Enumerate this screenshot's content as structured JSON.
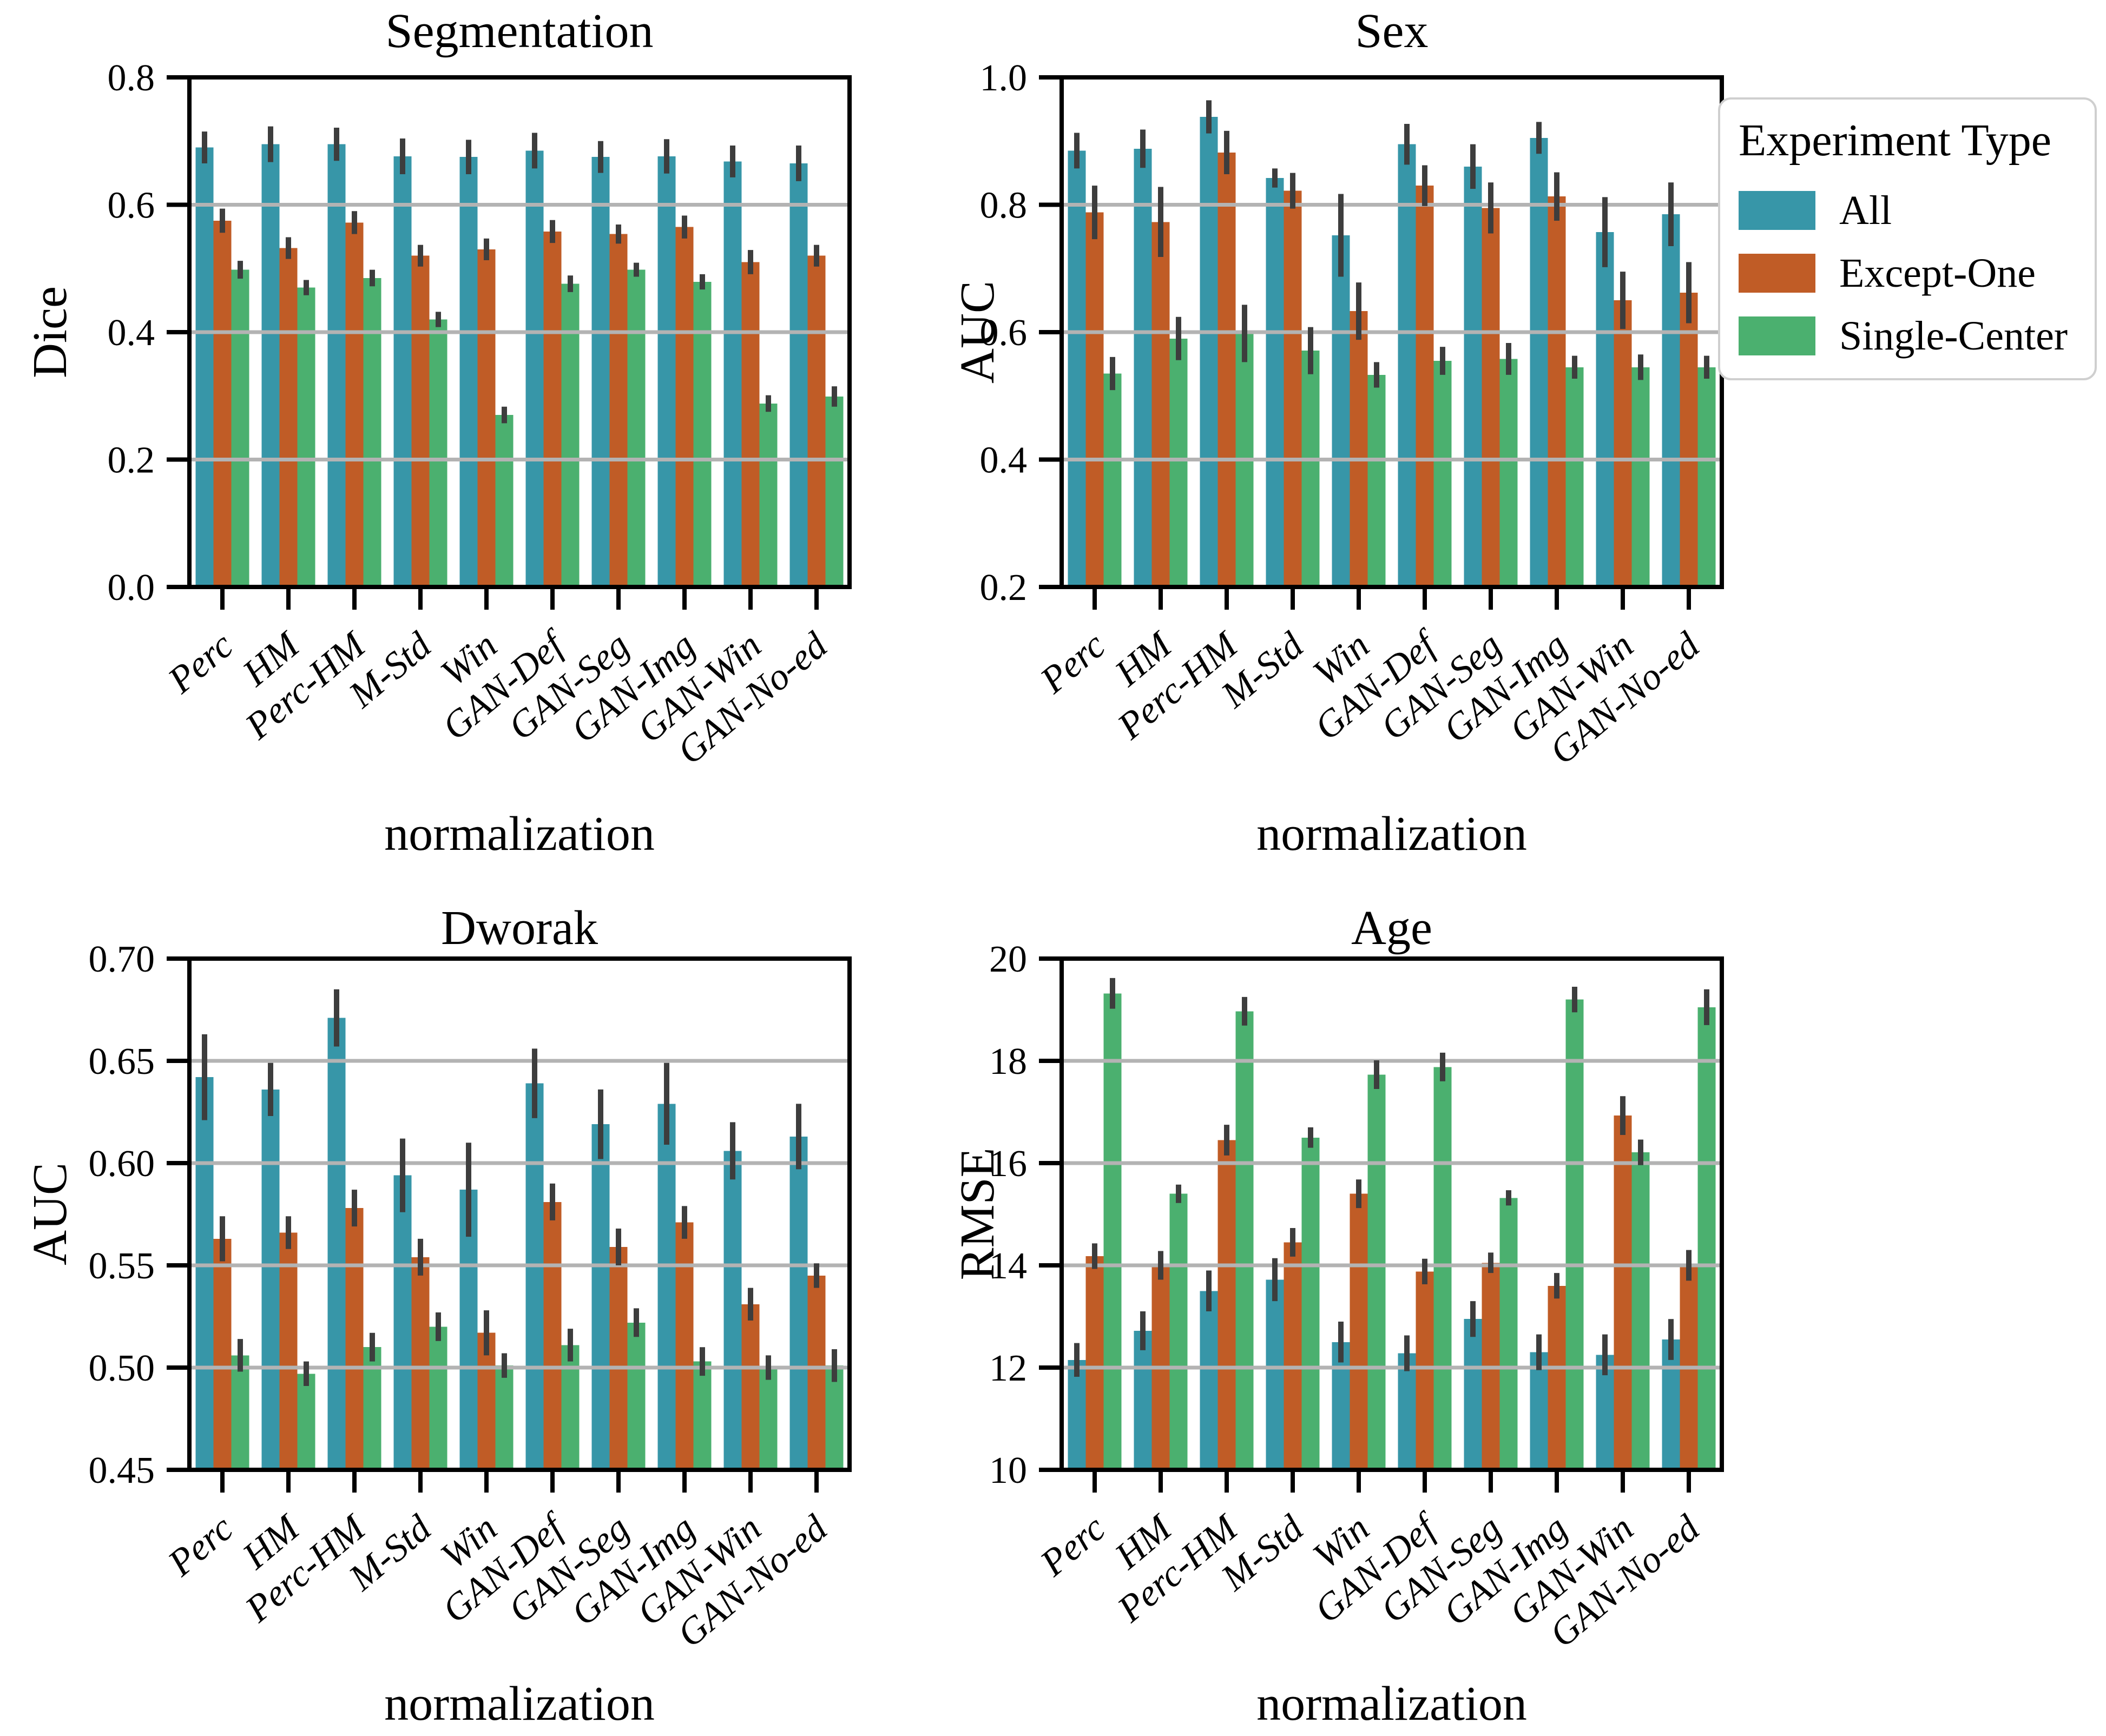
{
  "page": {
    "background": "#ffffff"
  },
  "colors": {
    "all": "#3796a8",
    "except_one": "#c05c26",
    "single_center": "#4bb06f",
    "error_bar": "#3d3d3d",
    "gridline": "#b3b3b3",
    "axes": "#000000",
    "legend_border": "#cfcfcf"
  },
  "legend": {
    "title": "Experiment Type",
    "position": "top-right",
    "entries": [
      {
        "label": "All",
        "color_key": "all"
      },
      {
        "label": "Except-One",
        "color_key": "except_one"
      },
      {
        "label": "Single-Center",
        "color_key": "single_center"
      }
    ]
  },
  "chart_data": [
    {
      "type": "bar",
      "title": "Segmentation",
      "ylabel": "Dice",
      "xlabel": "normalization",
      "ylim": [
        0.0,
        0.8
      ],
      "yticks": [
        0.0,
        0.2,
        0.4,
        0.6,
        0.8
      ],
      "ytick_decimals": 1,
      "grid": "horizontal gridlines at interior ticks, drawn above bars",
      "categories": [
        "Perc",
        "HM",
        "Perc-HM",
        "M-Std",
        "Win",
        "GAN-Def",
        "GAN-Seg",
        "GAN-Img",
        "GAN-Win",
        "GAN-No-ed"
      ],
      "series": [
        {
          "name": "All",
          "color_key": "all",
          "values": [
            0.69,
            0.695,
            0.695,
            0.676,
            0.675,
            0.685,
            0.675,
            0.676,
            0.668,
            0.665
          ],
          "errors": [
            0.025,
            0.028,
            0.026,
            0.028,
            0.027,
            0.028,
            0.025,
            0.027,
            0.025,
            0.028
          ]
        },
        {
          "name": "Except-One",
          "color_key": "except_one",
          "values": [
            0.575,
            0.532,
            0.572,
            0.52,
            0.53,
            0.558,
            0.554,
            0.565,
            0.51,
            0.52
          ],
          "errors": [
            0.019,
            0.017,
            0.018,
            0.017,
            0.017,
            0.018,
            0.015,
            0.018,
            0.019,
            0.017
          ]
        },
        {
          "name": "Single-Center",
          "color_key": "single_center",
          "values": [
            0.498,
            0.47,
            0.485,
            0.42,
            0.27,
            0.476,
            0.498,
            0.479,
            0.288,
            0.299
          ],
          "errors": [
            0.014,
            0.012,
            0.013,
            0.012,
            0.013,
            0.013,
            0.011,
            0.012,
            0.013,
            0.016
          ]
        }
      ]
    },
    {
      "type": "bar",
      "title": "Sex",
      "ylabel": "AUC",
      "xlabel": "normalization",
      "ylim": [
        0.2,
        1.0
      ],
      "yticks": [
        0.2,
        0.4,
        0.6,
        0.8,
        1.0
      ],
      "ytick_decimals": 1,
      "grid": "horizontal gridlines at interior ticks, drawn above bars",
      "categories": [
        "Perc",
        "HM",
        "Perc-HM",
        "M-Std",
        "Win",
        "GAN-Def",
        "GAN-Seg",
        "GAN-Img",
        "GAN-Win",
        "GAN-No-ed"
      ],
      "series": [
        {
          "name": "All",
          "color_key": "all",
          "values": [
            0.885,
            0.888,
            0.938,
            0.842,
            0.752,
            0.895,
            0.86,
            0.905,
            0.757,
            0.785
          ],
          "errors": [
            0.028,
            0.03,
            0.026,
            0.015,
            0.065,
            0.032,
            0.035,
            0.025,
            0.055,
            0.05
          ]
        },
        {
          "name": "Except-One",
          "color_key": "except_one",
          "values": [
            0.788,
            0.773,
            0.882,
            0.822,
            0.633,
            0.83,
            0.795,
            0.813,
            0.65,
            0.662
          ],
          "errors": [
            0.042,
            0.055,
            0.034,
            0.028,
            0.045,
            0.032,
            0.04,
            0.038,
            0.045,
            0.048
          ]
        },
        {
          "name": "Single-Center",
          "color_key": "single_center",
          "values": [
            0.535,
            0.59,
            0.598,
            0.571,
            0.533,
            0.555,
            0.558,
            0.545,
            0.545,
            0.545
          ],
          "errors": [
            0.026,
            0.034,
            0.045,
            0.037,
            0.02,
            0.022,
            0.025,
            0.018,
            0.02,
            0.018
          ]
        }
      ]
    },
    {
      "type": "bar",
      "title": "Dworak",
      "ylabel": "AUC",
      "xlabel": "normalization",
      "ylim": [
        0.45,
        0.7
      ],
      "yticks": [
        0.45,
        0.5,
        0.55,
        0.6,
        0.65,
        0.7
      ],
      "ytick_decimals": 2,
      "grid": "horizontal gridlines at interior ticks, drawn above bars",
      "categories": [
        "Perc",
        "HM",
        "Perc-HM",
        "M-Std",
        "Win",
        "GAN-Def",
        "GAN-Seg",
        "GAN-Img",
        "GAN-Win",
        "GAN-No-ed"
      ],
      "series": [
        {
          "name": "All",
          "color_key": "all",
          "values": [
            0.642,
            0.636,
            0.671,
            0.594,
            0.587,
            0.639,
            0.619,
            0.629,
            0.606,
            0.613
          ],
          "errors": [
            0.021,
            0.013,
            0.014,
            0.018,
            0.023,
            0.017,
            0.017,
            0.02,
            0.014,
            0.016
          ]
        },
        {
          "name": "Except-One",
          "color_key": "except_one",
          "values": [
            0.563,
            0.566,
            0.578,
            0.554,
            0.517,
            0.581,
            0.559,
            0.571,
            0.531,
            0.545
          ],
          "errors": [
            0.011,
            0.008,
            0.009,
            0.009,
            0.011,
            0.009,
            0.009,
            0.008,
            0.008,
            0.006
          ]
        },
        {
          "name": "Single-Center",
          "color_key": "single_center",
          "values": [
            0.506,
            0.497,
            0.51,
            0.52,
            0.501,
            0.511,
            0.522,
            0.503,
            0.5,
            0.501
          ],
          "errors": [
            0.008,
            0.006,
            0.007,
            0.007,
            0.006,
            0.008,
            0.007,
            0.007,
            0.006,
            0.008
          ]
        }
      ]
    },
    {
      "type": "bar",
      "title": "Age",
      "ylabel": "RMSE",
      "xlabel": "normalization",
      "ylim": [
        10,
        20
      ],
      "yticks": [
        10,
        12,
        14,
        16,
        18,
        20
      ],
      "ytick_decimals": 0,
      "grid": "horizontal gridlines at interior ticks, drawn above bars",
      "categories": [
        "Perc",
        "HM",
        "Perc-HM",
        "M-Std",
        "Win",
        "GAN-Def",
        "GAN-Seg",
        "GAN-Img",
        "GAN-Win",
        "GAN-No-ed"
      ],
      "series": [
        {
          "name": "All",
          "color_key": "all",
          "values": [
            12.15,
            12.72,
            13.5,
            13.72,
            12.5,
            12.28,
            12.95,
            12.3,
            12.25,
            12.55
          ],
          "errors": [
            0.33,
            0.38,
            0.4,
            0.42,
            0.4,
            0.35,
            0.35,
            0.35,
            0.4,
            0.4
          ]
        },
        {
          "name": "Except-One",
          "color_key": "except_one",
          "values": [
            14.18,
            14.0,
            16.45,
            14.45,
            15.4,
            13.88,
            14.05,
            13.6,
            16.93,
            14.0
          ],
          "errors": [
            0.25,
            0.28,
            0.3,
            0.28,
            0.28,
            0.25,
            0.2,
            0.25,
            0.38,
            0.3
          ]
        },
        {
          "name": "Single-Center",
          "color_key": "single_center",
          "values": [
            19.32,
            15.4,
            18.97,
            16.5,
            17.73,
            17.88,
            15.32,
            19.2,
            16.21,
            19.05
          ],
          "errors": [
            0.3,
            0.18,
            0.28,
            0.2,
            0.28,
            0.28,
            0.15,
            0.25,
            0.25,
            0.35
          ]
        }
      ]
    }
  ]
}
